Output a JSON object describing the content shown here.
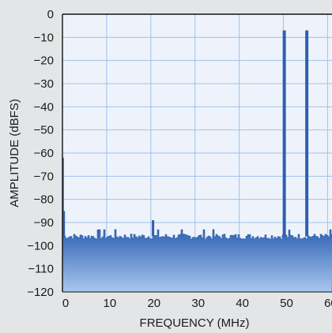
{
  "chart_data": {
    "type": "line",
    "title": "",
    "xlabel": "FREQUENCY (MHz)",
    "ylabel": "AMPLITUDE (dBFS)",
    "xlim": [
      0,
      61
    ],
    "ylim": [
      -120,
      0
    ],
    "x_ticks": [
      0,
      10,
      20,
      30,
      40,
      50,
      60
    ],
    "x_tick_labels": [
      "0",
      "10",
      "20",
      "30",
      "40",
      "50",
      "60"
    ],
    "y_ticks": [
      0,
      -10,
      -20,
      -30,
      -40,
      -50,
      -60,
      -70,
      -80,
      -90,
      -100,
      -110,
      -120
    ],
    "y_tick_labels": [
      "0",
      "−10",
      "−20",
      "−30",
      "−40",
      "−50",
      "−60",
      "−70",
      "−80",
      "−90",
      "−100",
      "−110",
      "−120"
    ],
    "grid": true,
    "noise_floor_dbfs": -96,
    "series": [
      {
        "color": "#2f5fae",
        "points": [
          {
            "x": 0.05,
            "y": -62
          },
          {
            "x": 0.3,
            "y": -85
          },
          {
            "x": 20.5,
            "y": -89
          },
          {
            "x": 50.2,
            "y": -7
          },
          {
            "x": 55.3,
            "y": -7
          }
        ]
      }
    ]
  },
  "colors": {
    "plot_background": "#eef3fb",
    "fill_top": "#2f63b3",
    "fill_bottom": "#a9c7ee",
    "grid": "#9fc1ec",
    "trace": "#2f5fae"
  }
}
